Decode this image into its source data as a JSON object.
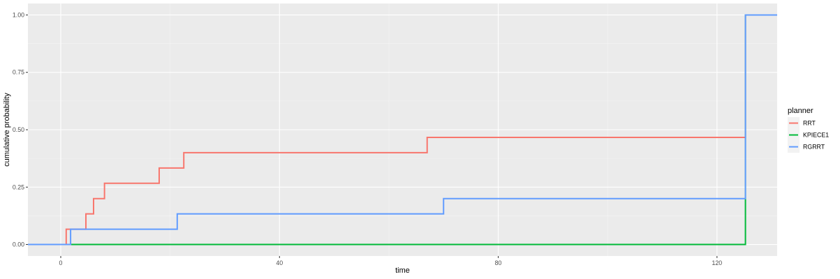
{
  "chart_data": {
    "type": "line",
    "step": true,
    "title": "",
    "xlabel": "time",
    "ylabel": "cumulative probability",
    "xlim": [
      -6,
      131
    ],
    "ylim": [
      -0.05,
      1.05
    ],
    "x_ticks": [
      0,
      40,
      80,
      120
    ],
    "y_ticks": [
      0.0,
      0.25,
      0.5,
      0.75,
      1.0
    ],
    "y_tick_labels": [
      "0.00",
      "0.25",
      "0.50",
      "0.75",
      "1.00"
    ],
    "grid": true,
    "legend": {
      "title": "planner",
      "position": "right"
    },
    "series": [
      {
        "name": "RRT",
        "color": "#F8766D",
        "points": [
          [
            -6,
            0.0
          ],
          [
            1.0,
            0.0
          ],
          [
            1.0,
            0.0667
          ],
          [
            4.6,
            0.0667
          ],
          [
            4.6,
            0.1333
          ],
          [
            6.0,
            0.1333
          ],
          [
            6.0,
            0.2
          ],
          [
            8.0,
            0.2
          ],
          [
            8.0,
            0.2667
          ],
          [
            18.0,
            0.2667
          ],
          [
            18.0,
            0.3333
          ],
          [
            22.5,
            0.3333
          ],
          [
            22.5,
            0.4
          ],
          [
            67.0,
            0.4
          ],
          [
            67.0,
            0.4667
          ],
          [
            125.2,
            0.4667
          ],
          [
            125.2,
            1.0
          ],
          [
            131,
            1.0
          ]
        ]
      },
      {
        "name": "KPIECE1",
        "color": "#00BA38",
        "points": [
          [
            -6,
            0.0
          ],
          [
            125.2,
            0.0
          ],
          [
            125.2,
            1.0
          ],
          [
            131,
            1.0
          ]
        ]
      },
      {
        "name": "RGRRT",
        "color": "#619CFF",
        "points": [
          [
            -6,
            0.0
          ],
          [
            1.8,
            0.0
          ],
          [
            1.8,
            0.0667
          ],
          [
            21.3,
            0.0667
          ],
          [
            21.3,
            0.1333
          ],
          [
            70.0,
            0.1333
          ],
          [
            70.0,
            0.2
          ],
          [
            125.2,
            0.2
          ],
          [
            125.2,
            1.0
          ],
          [
            131,
            1.0
          ]
        ]
      }
    ]
  }
}
